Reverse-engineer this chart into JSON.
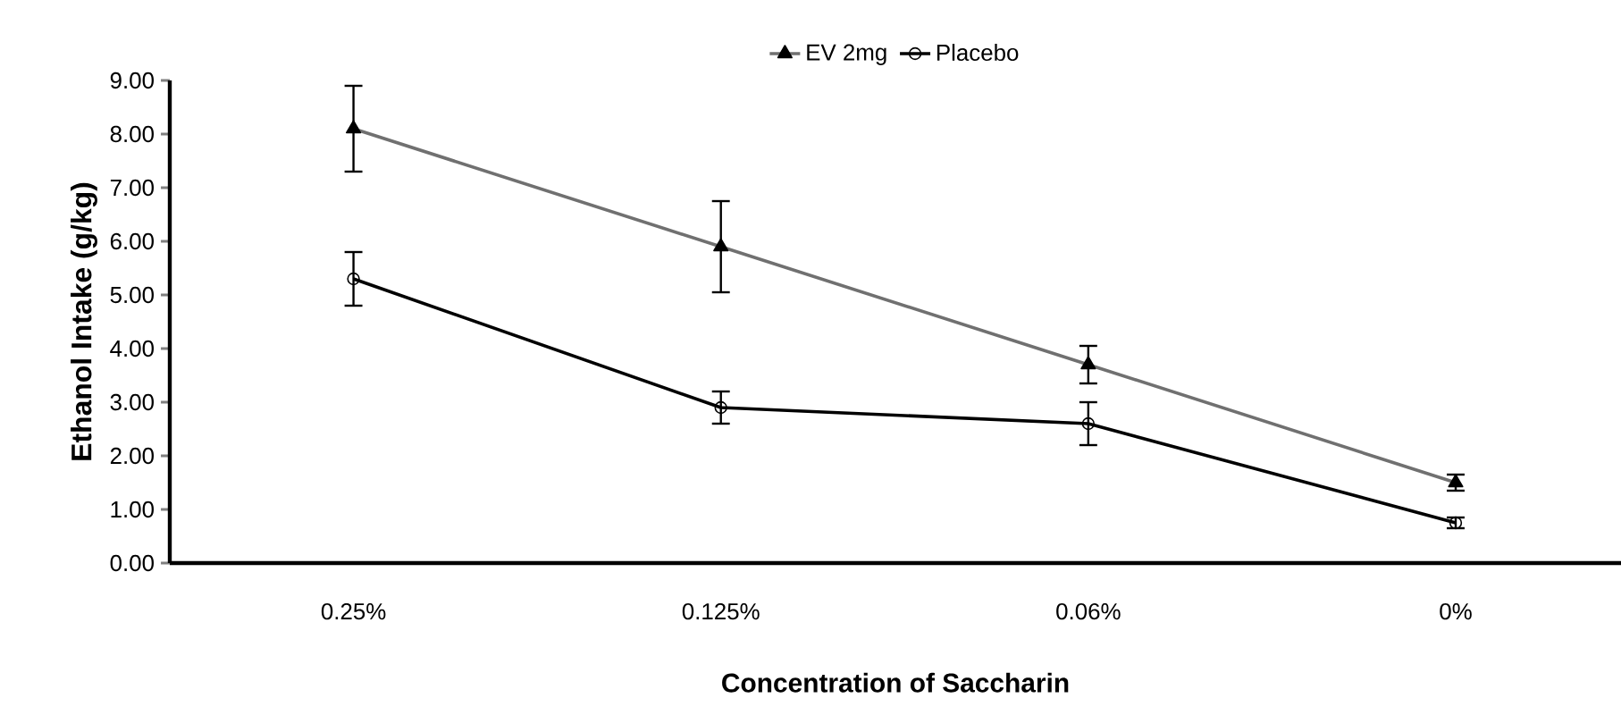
{
  "chart_data": {
    "type": "line",
    "xlabel": "Concentration of Saccharin",
    "ylabel": "Ethanol Intake (g/kg)",
    "categories": [
      "0.25%",
      "0.125%",
      "0.06%",
      "0%"
    ],
    "series": [
      {
        "name": "EV 2mg",
        "color": "#707070",
        "marker": "triangle",
        "values": [
          8.1,
          5.9,
          3.7,
          1.5
        ],
        "errors": [
          0.8,
          0.85,
          0.35,
          0.15
        ]
      },
      {
        "name": "Placebo",
        "color": "#000000",
        "marker": "circle",
        "values": [
          5.3,
          2.9,
          2.6,
          0.75
        ],
        "errors": [
          0.5,
          0.3,
          0.4,
          0.1
        ]
      }
    ],
    "ylim": [
      0,
      9
    ],
    "yticks": [
      {
        "value": 0,
        "label": "0.00"
      },
      {
        "value": 1,
        "label": "1.00"
      },
      {
        "value": 2,
        "label": "2.00"
      },
      {
        "value": 3,
        "label": "3.00"
      },
      {
        "value": 4,
        "label": "4.00"
      },
      {
        "value": 5,
        "label": "5.00"
      },
      {
        "value": 6,
        "label": "6.00"
      },
      {
        "value": 7,
        "label": "7.00"
      },
      {
        "value": 8,
        "label": "8.00"
      },
      {
        "value": 9,
        "label": "9.00"
      }
    ],
    "legend": "top",
    "grid": false,
    "line_style": "solid"
  }
}
